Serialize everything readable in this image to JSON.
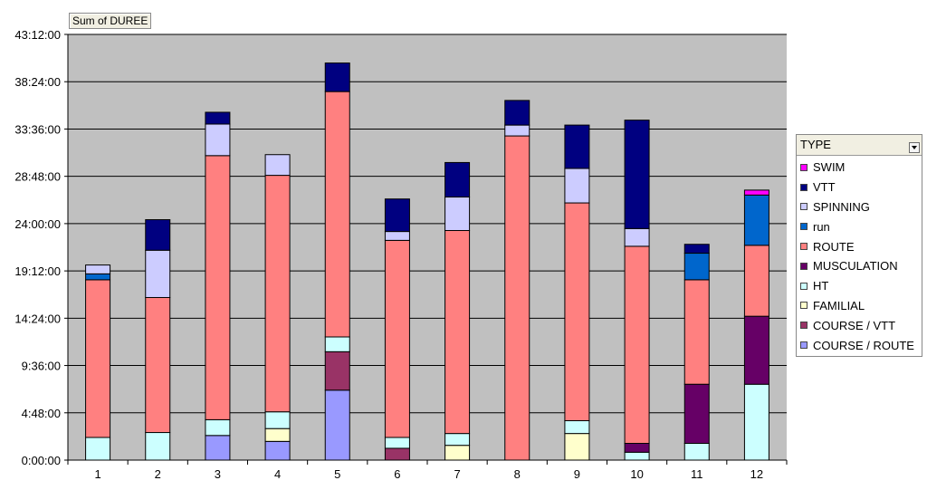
{
  "pivot": {
    "data_field": "Sum of DUREE"
  },
  "legend": {
    "title": "TYPE",
    "entries": [
      {
        "name": "SWIM",
        "color": "#ff00ff"
      },
      {
        "name": "VTT",
        "color": "#000080"
      },
      {
        "name": "SPINNING",
        "color": "#ccccff"
      },
      {
        "name": "run",
        "color": "#0066cc"
      },
      {
        "name": "ROUTE",
        "color": "#ff8080"
      },
      {
        "name": "MUSCULATION",
        "color": "#660066"
      },
      {
        "name": "HT",
        "color": "#ccffff"
      },
      {
        "name": "FAMILIAL",
        "color": "#ffffcc"
      },
      {
        "name": "COURSE / VTT",
        "color": "#993366"
      },
      {
        "name": "COURSE / ROUTE",
        "color": "#9999ff"
      }
    ]
  },
  "chart_data": {
    "type": "bar",
    "stacked": true,
    "categories": [
      "1",
      "2",
      "3",
      "4",
      "5",
      "6",
      "7",
      "8",
      "9",
      "10",
      "11",
      "12"
    ],
    "y_unit": "hours (h:mm:ss)",
    "ylim": [
      0,
      43.2
    ],
    "y_ticks": [
      "0:00:00",
      "4:48:00",
      "9:36:00",
      "14:24:00",
      "19:12:00",
      "24:00:00",
      "28:48:00",
      "33:36:00",
      "38:24:00",
      "43:12:00"
    ],
    "grid": true,
    "legend_position": "right",
    "series": [
      {
        "name": "COURSE / ROUTE",
        "color": "#9999ff",
        "values": [
          0,
          0,
          2.5,
          1.9,
          7.1,
          0,
          0,
          0,
          0,
          0,
          0,
          0
        ]
      },
      {
        "name": "COURSE / VTT",
        "color": "#993366",
        "values": [
          0,
          0,
          0,
          0,
          3.9,
          1.2,
          0,
          0,
          0,
          0,
          0,
          0
        ]
      },
      {
        "name": "FAMILIAL",
        "color": "#ffffcc",
        "values": [
          0,
          0,
          0,
          1.3,
          0,
          0,
          1.5,
          0,
          2.7,
          0,
          0,
          0
        ]
      },
      {
        "name": "HT",
        "color": "#ccffff",
        "values": [
          2.3,
          2.8,
          1.6,
          1.7,
          1.5,
          1.1,
          1.2,
          0,
          1.3,
          0.8,
          1.7,
          7.7
        ]
      },
      {
        "name": "MUSCULATION",
        "color": "#660066",
        "values": [
          0,
          0,
          0,
          0,
          0,
          0,
          0,
          0,
          0,
          0.9,
          6.0,
          6.9
        ]
      },
      {
        "name": "ROUTE",
        "color": "#ff8080",
        "values": [
          16.0,
          13.7,
          26.8,
          24.0,
          24.9,
          20.0,
          20.6,
          32.9,
          22.1,
          20.0,
          10.6,
          7.2
        ]
      },
      {
        "name": "run",
        "color": "#0066cc",
        "values": [
          0.6,
          0,
          0,
          0,
          0,
          0,
          0,
          0,
          0,
          0,
          2.7,
          5.1
        ]
      },
      {
        "name": "SPINNING",
        "color": "#ccccff",
        "values": [
          0.9,
          4.8,
          3.2,
          2.1,
          0,
          0.9,
          3.4,
          1.1,
          3.5,
          1.8,
          0,
          0
        ]
      },
      {
        "name": "VTT",
        "color": "#000080",
        "values": [
          0,
          3.1,
          1.2,
          0,
          2.9,
          3.3,
          3.5,
          2.5,
          4.4,
          11.0,
          0.9,
          0
        ]
      },
      {
        "name": "SWIM",
        "color": "#ff00ff",
        "values": [
          0,
          0,
          0,
          0,
          0,
          0,
          0,
          0,
          0,
          0,
          0,
          0.5
        ]
      }
    ]
  }
}
